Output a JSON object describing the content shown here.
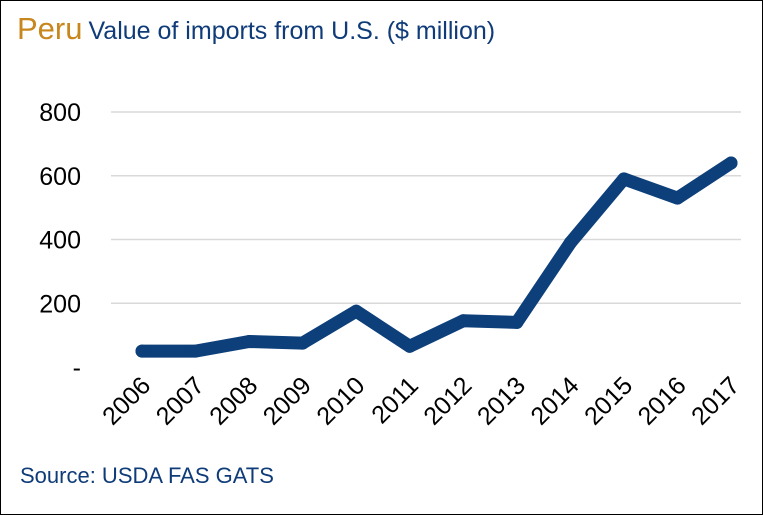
{
  "title": {
    "country": "Peru",
    "text": "Value of imports from U.S. ($ million)"
  },
  "source": "Source: USDA FAS GATS",
  "colors": {
    "country": "#c8871e",
    "text": "#0f3c78",
    "line": "#0d3f7a",
    "grid": "#d9d9d9"
  },
  "chart_data": {
    "type": "line",
    "x": [
      "2006",
      "2007",
      "2008",
      "2009",
      "2010",
      "2011",
      "2012",
      "2013",
      "2014",
      "2015",
      "2016",
      "2017"
    ],
    "series": [
      {
        "values": [
          50,
          50,
          80,
          75,
          175,
          65,
          145,
          140,
          390,
          590,
          530,
          640
        ]
      }
    ],
    "y_ticks": [
      {
        "value": 800,
        "label": "800"
      },
      {
        "value": 600,
        "label": "600"
      },
      {
        "value": 400,
        "label": "400"
      },
      {
        "value": 200,
        "label": "200"
      },
      {
        "value": 0,
        "label": "-"
      }
    ],
    "ylim": [
      0,
      800
    ],
    "grid": true,
    "xlabel": "",
    "ylabel": ""
  }
}
